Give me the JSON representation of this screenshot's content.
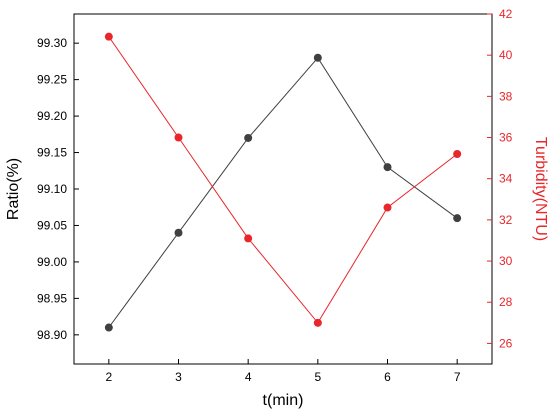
{
  "chart_data": {
    "type": "line",
    "xlabel": "t(min)",
    "ylabel_left": "Ratio(%)",
    "ylabel_right": "Turbidity(NTU)",
    "x": [
      2,
      3,
      4,
      5,
      6,
      7
    ],
    "x_ticks": [
      "2",
      "3",
      "4",
      "5",
      "6",
      "7"
    ],
    "xlim": [
      1.5,
      7.5
    ],
    "ylim_left": [
      98.86,
      99.34
    ],
    "ylim_right": [
      25,
      42
    ],
    "y_ticks_left": [
      "98.90",
      "98.95",
      "99.00",
      "99.05",
      "99.10",
      "99.15",
      "99.20",
      "99.25",
      "99.30"
    ],
    "y_ticks_right": [
      "26",
      "28",
      "30",
      "32",
      "34",
      "36",
      "38",
      "40",
      "42"
    ],
    "grid": false,
    "series": [
      {
        "axis": "left",
        "color": "#404040",
        "values": [
          98.91,
          99.04,
          99.17,
          99.28,
          99.13,
          99.06
        ]
      },
      {
        "axis": "right",
        "color": "#e8262b",
        "values": [
          40.9,
          36.0,
          31.1,
          27.0,
          32.6,
          35.2
        ]
      }
    ]
  }
}
